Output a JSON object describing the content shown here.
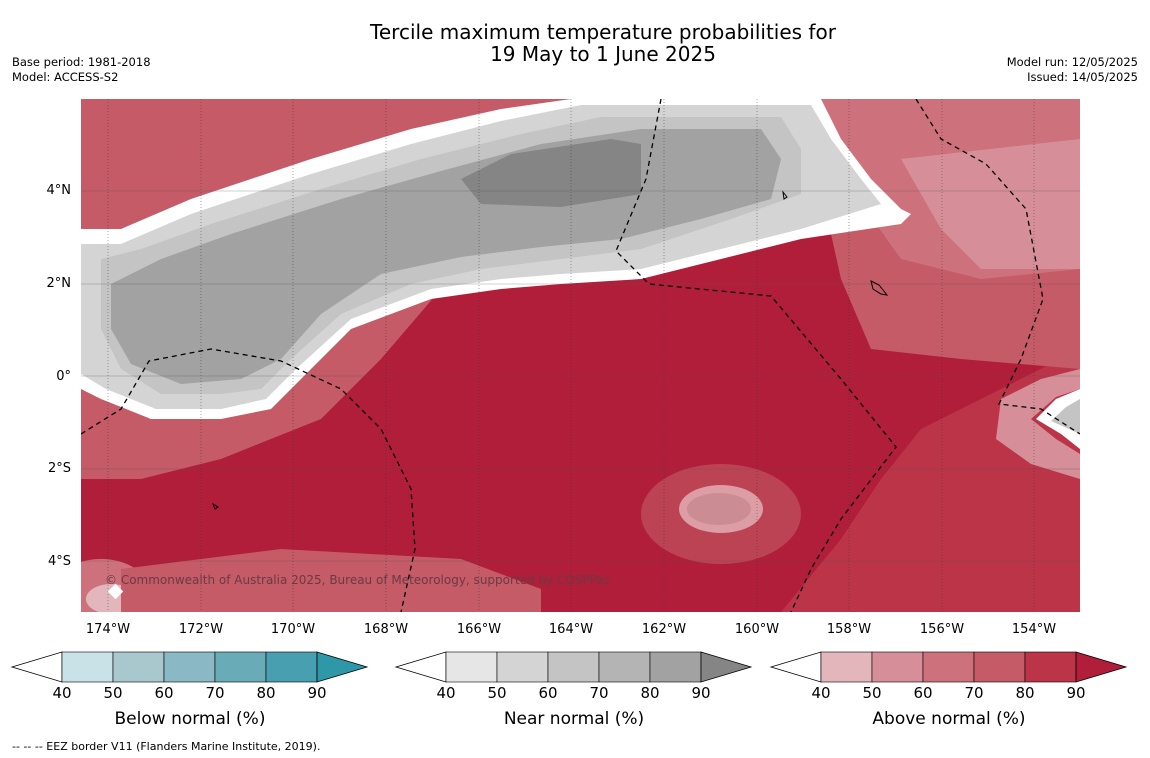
{
  "title": {
    "line1": "Tercile maximum temperature probabilities for",
    "line2": "19 May to 1 June 2025"
  },
  "meta_left": {
    "base_period": "Base period: 1981-2018",
    "model": "Model: ACCESS-S2"
  },
  "meta_right": {
    "model_run": "Model run: 12/05/2025",
    "issued": "Issued: 14/05/2025"
  },
  "map": {
    "copyright": "© Commonwealth of Australia 2025, Bureau of Meteorology, supported by COSPPac",
    "lat_labels": [
      "4°N",
      "2°N",
      "0°",
      "2°S",
      "4°S"
    ],
    "lon_labels": [
      "174°W",
      "172°W",
      "170°W",
      "168°W",
      "166°W",
      "164°W",
      "162°W",
      "160°W",
      "158°W",
      "156°W",
      "154°W"
    ]
  },
  "colorbars": [
    {
      "title": "Below normal (%)",
      "ticks": [
        "40",
        "50",
        "60",
        "70",
        "80",
        "90"
      ],
      "colors": [
        "#c9e2e8",
        "#a9c8ce",
        "#8ab8c4",
        "#6aabb8",
        "#489fb0",
        "#2e97a8"
      ]
    },
    {
      "title": "Near normal (%)",
      "ticks": [
        "40",
        "50",
        "60",
        "70",
        "80",
        "90"
      ],
      "colors": [
        "#e6e6e6",
        "#d4d4d4",
        "#c4c4c4",
        "#b4b4b4",
        "#a2a2a2",
        "#858585"
      ]
    },
    {
      "title": "Above normal (%)",
      "ticks": [
        "40",
        "50",
        "60",
        "70",
        "80",
        "90"
      ],
      "colors": [
        "#e3b6bc",
        "#d68f98",
        "#cd727d",
        "#c45b67",
        "#bb3448",
        "#b01e39"
      ]
    }
  ],
  "footer": "--  --  -- EEZ border V11 (Flanders Marine Institute, 2019)."
}
